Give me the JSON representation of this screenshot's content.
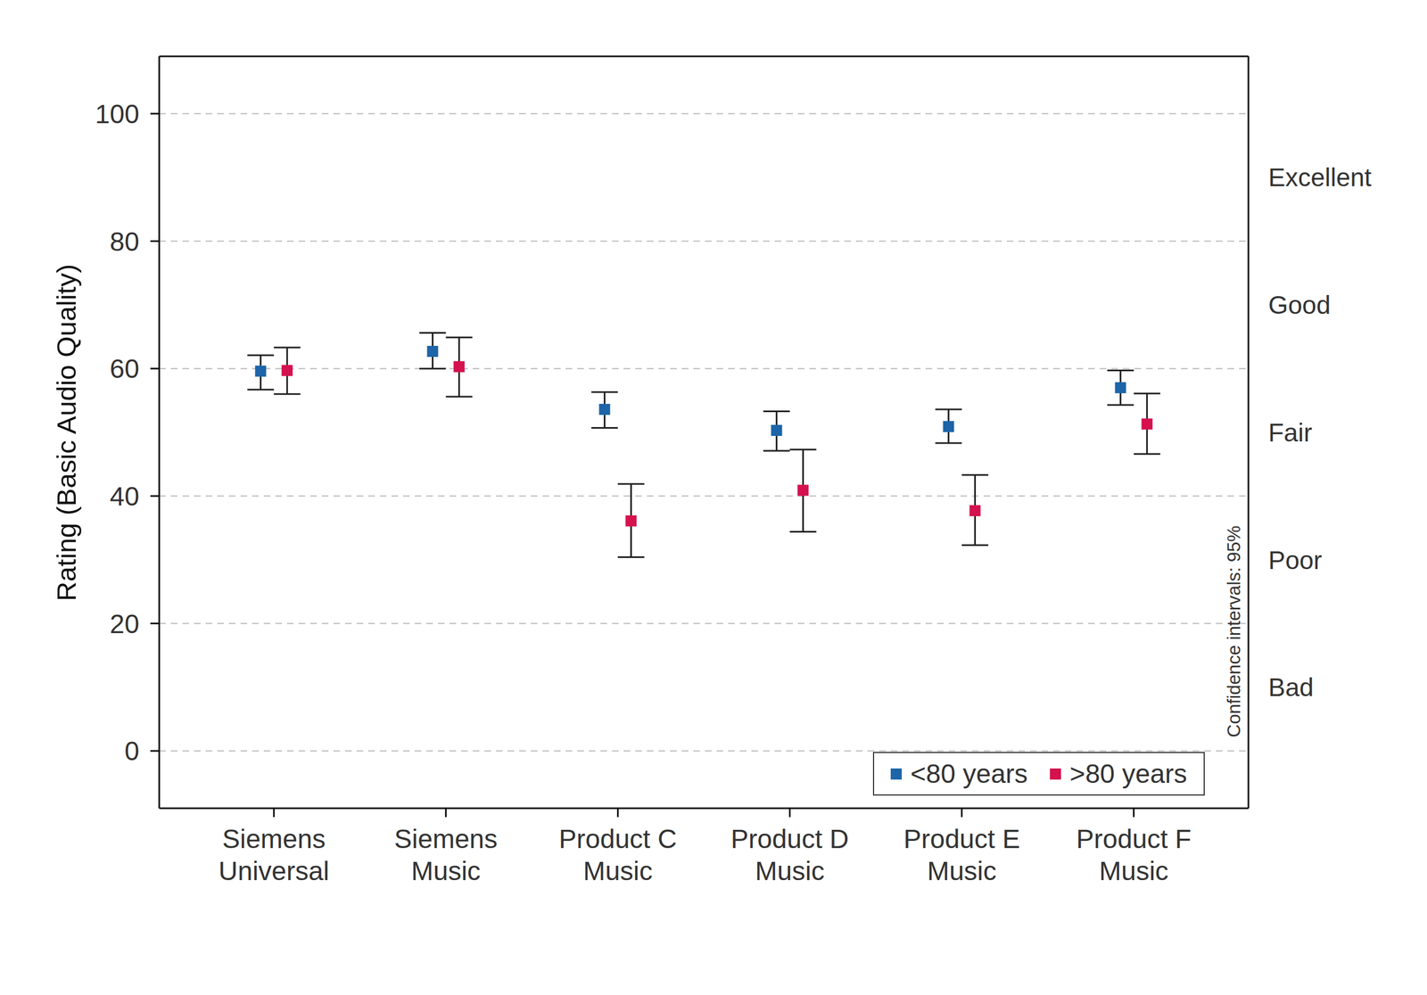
{
  "chart_data": {
    "type": "scatter",
    "y_label": "Rating (Basic Audio Quality)",
    "categories": [
      "Siemens\nUniversal",
      "Siemens\nMusic",
      "Product C\nMusic",
      "Product D\nMusic",
      "Product E\nMusic",
      "Product F\nMusic"
    ],
    "series": [
      {
        "name": "<80 years",
        "color": "#1c65a8",
        "marker": "square",
        "values": [
          59.6,
          62.7,
          53.6,
          50.3,
          50.9,
          57.0
        ],
        "ci_low": [
          56.7,
          60.0,
          50.7,
          47.1,
          48.3,
          54.3
        ],
        "ci_high": [
          62.1,
          65.6,
          56.3,
          53.3,
          53.6,
          59.7
        ]
      },
      {
        "name": ">80 years",
        "color": "#d5114e",
        "marker": "square",
        "values": [
          59.7,
          60.3,
          36.1,
          40.9,
          37.7,
          51.3
        ],
        "ci_low": [
          56.0,
          55.6,
          30.4,
          34.4,
          32.3,
          46.6
        ],
        "ci_high": [
          63.3,
          64.9,
          41.9,
          47.3,
          43.3,
          56.1
        ]
      }
    ],
    "ylim": [
      -9,
      109
    ],
    "yticks": [
      0,
      20,
      40,
      60,
      80,
      100
    ],
    "grid": true,
    "legend": "lower right",
    "quality_labels": [
      {
        "label": "Excellent",
        "value": 90
      },
      {
        "label": "Good",
        "value": 70
      },
      {
        "label": "Fair",
        "value": 50
      },
      {
        "label": "Poor",
        "value": 30
      },
      {
        "label": "Bad",
        "value": 10
      }
    ],
    "annotation": "Confidence intervals: 95%"
  }
}
